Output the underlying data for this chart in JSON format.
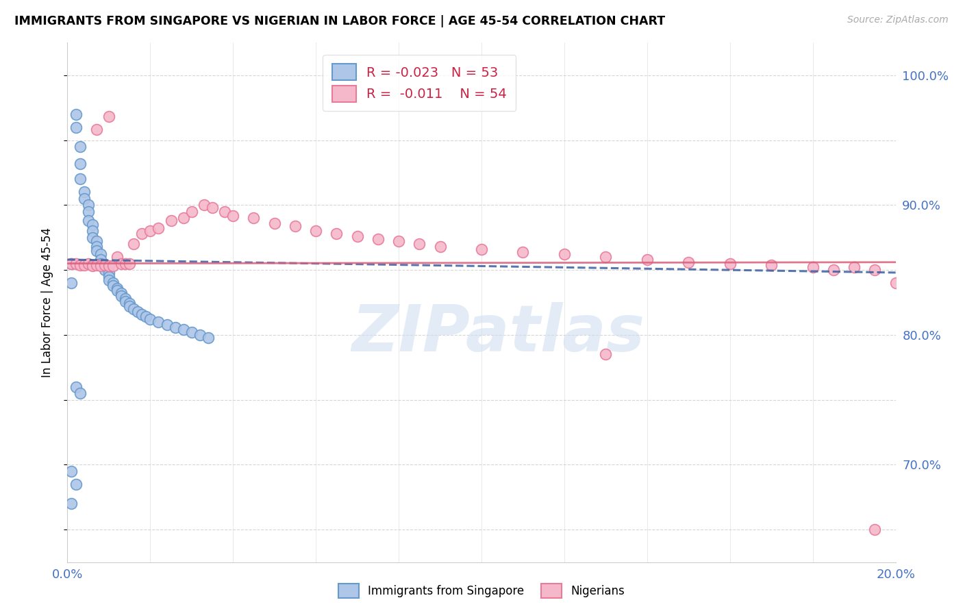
{
  "title": "IMMIGRANTS FROM SINGAPORE VS NIGERIAN IN LABOR FORCE | AGE 45-54 CORRELATION CHART",
  "source": "Source: ZipAtlas.com",
  "ylabel": "In Labor Force | Age 45-54",
  "xlim": [
    0.0,
    0.2
  ],
  "ylim": [
    0.625,
    1.025
  ],
  "yticks": [
    0.65,
    0.7,
    0.75,
    0.8,
    0.85,
    0.9,
    0.95,
    1.0
  ],
  "ytick_labels_right": [
    "",
    "70.0%",
    "",
    "80.0%",
    "",
    "90.0%",
    "",
    "100.0%"
  ],
  "xticks": [
    0.0,
    0.02,
    0.04,
    0.06,
    0.08,
    0.1,
    0.12,
    0.14,
    0.16,
    0.18,
    0.2
  ],
  "xtick_labels": [
    "0.0%",
    "",
    "",
    "",
    "",
    "",
    "",
    "",
    "",
    "",
    "20.0%"
  ],
  "singapore_color": "#aec6e8",
  "nigerian_color": "#f5b8ca",
  "singapore_edge": "#6699cc",
  "nigerian_edge": "#e87a9a",
  "singapore_line_color": "#3a5fa0",
  "nigerian_line_color": "#d95f7a",
  "watermark": "ZIPatlas",
  "legend_r_singapore": "R = -0.023",
  "legend_n_singapore": "N = 53",
  "legend_r_nigerian": "R =  -0.011",
  "legend_n_nigerian": "N = 54",
  "singapore_x": [
    0.001,
    0.001,
    0.002,
    0.002,
    0.003,
    0.003,
    0.003,
    0.004,
    0.004,
    0.005,
    0.005,
    0.005,
    0.006,
    0.006,
    0.006,
    0.007,
    0.007,
    0.007,
    0.008,
    0.008,
    0.008,
    0.009,
    0.009,
    0.01,
    0.01,
    0.01,
    0.011,
    0.011,
    0.012,
    0.012,
    0.013,
    0.013,
    0.014,
    0.014,
    0.015,
    0.015,
    0.016,
    0.017,
    0.018,
    0.019,
    0.02,
    0.022,
    0.024,
    0.026,
    0.028,
    0.03,
    0.032,
    0.034,
    0.002,
    0.003,
    0.001,
    0.002,
    0.001
  ],
  "singapore_y": [
    0.855,
    0.84,
    0.97,
    0.96,
    0.945,
    0.932,
    0.92,
    0.91,
    0.905,
    0.9,
    0.895,
    0.888,
    0.885,
    0.88,
    0.875,
    0.872,
    0.868,
    0.865,
    0.862,
    0.858,
    0.855,
    0.853,
    0.85,
    0.848,
    0.845,
    0.842,
    0.84,
    0.838,
    0.836,
    0.834,
    0.832,
    0.83,
    0.828,
    0.826,
    0.824,
    0.822,
    0.82,
    0.818,
    0.816,
    0.814,
    0.812,
    0.81,
    0.808,
    0.806,
    0.804,
    0.802,
    0.8,
    0.798,
    0.76,
    0.755,
    0.695,
    0.685,
    0.67
  ],
  "nigerian_x": [
    0.001,
    0.002,
    0.003,
    0.004,
    0.005,
    0.006,
    0.006,
    0.007,
    0.008,
    0.009,
    0.01,
    0.011,
    0.012,
    0.013,
    0.014,
    0.015,
    0.016,
    0.018,
    0.02,
    0.022,
    0.025,
    0.028,
    0.03,
    0.033,
    0.035,
    0.038,
    0.04,
    0.045,
    0.05,
    0.055,
    0.06,
    0.065,
    0.07,
    0.075,
    0.08,
    0.085,
    0.09,
    0.1,
    0.11,
    0.12,
    0.13,
    0.14,
    0.15,
    0.16,
    0.17,
    0.18,
    0.185,
    0.19,
    0.195,
    0.2,
    0.01,
    0.007,
    0.13,
    0.195
  ],
  "nigerian_y": [
    0.855,
    0.855,
    0.854,
    0.854,
    0.855,
    0.854,
    0.853,
    0.854,
    0.853,
    0.854,
    0.853,
    0.853,
    0.86,
    0.855,
    0.855,
    0.855,
    0.87,
    0.878,
    0.88,
    0.882,
    0.888,
    0.89,
    0.895,
    0.9,
    0.898,
    0.895,
    0.892,
    0.89,
    0.886,
    0.884,
    0.88,
    0.878,
    0.876,
    0.874,
    0.872,
    0.87,
    0.868,
    0.866,
    0.864,
    0.862,
    0.86,
    0.858,
    0.856,
    0.855,
    0.854,
    0.852,
    0.85,
    0.852,
    0.85,
    0.84,
    0.968,
    0.958,
    0.785,
    0.65
  ]
}
